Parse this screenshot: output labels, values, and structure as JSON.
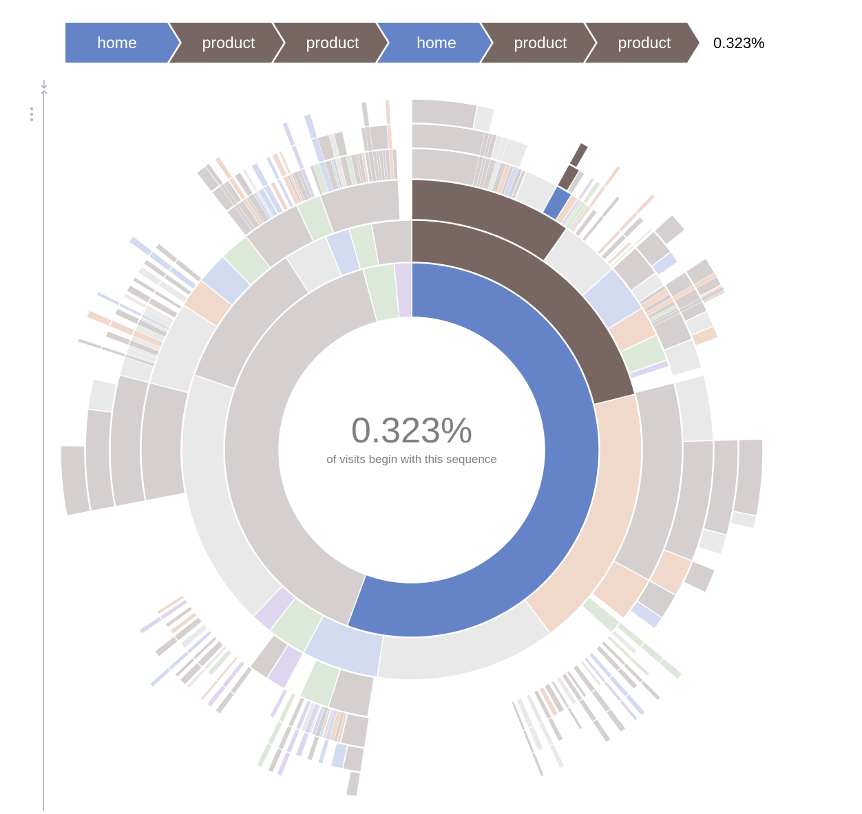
{
  "colors": {
    "home": "#6584c8",
    "product": "#776662",
    "search": "#d5cfcf",
    "account": "#f0d8cb",
    "other": "#e9e9e9",
    "end": "#d2dbf0",
    "green": "#dde9d8",
    "purple": "#ddd6ee"
  },
  "breadcrumb": {
    "steps": [
      {
        "label": "home",
        "color": "#6584c8"
      },
      {
        "label": "product",
        "color": "#776662"
      },
      {
        "label": "product",
        "color": "#776662"
      },
      {
        "label": "home",
        "color": "#6584c8"
      },
      {
        "label": "product",
        "color": "#776662"
      },
      {
        "label": "product",
        "color": "#776662"
      }
    ],
    "percentage": "0.323%"
  },
  "center": {
    "percentage": "0.323%",
    "caption": "of visits begin with this sequence"
  },
  "chart_data": {
    "type": "sunburst",
    "highlighted_sequence": [
      "home",
      "product",
      "product",
      "home",
      "product",
      "product"
    ],
    "highlighted_share": "0.323%",
    "rings": [
      [
        {
          "cat": "home",
          "a0": 0,
          "a1": 0.556
        },
        {
          "cat": "search",
          "a0": 0.556,
          "a1": 0.958
        },
        {
          "cat": "green",
          "a0": 0.958,
          "a1": 0.985
        },
        {
          "cat": "purple",
          "a0": 0.985,
          "a1": 1.0
        }
      ],
      [
        {
          "cat": "product",
          "a0": 0,
          "a1": 0.211
        },
        {
          "cat": "account",
          "a0": 0.211,
          "a1": 0.397
        },
        {
          "cat": "other",
          "a0": 0.397,
          "a1": 0.524
        },
        {
          "cat": "end",
          "a0": 0.524,
          "a1": 0.578
        },
        {
          "cat": "green",
          "a0": 0.578,
          "a1": 0.606
        },
        {
          "cat": "purple",
          "a0": 0.606,
          "a1": 0.621
        },
        {
          "cat": "other",
          "a0": 0.621,
          "a1": 0.803
        },
        {
          "cat": "search",
          "a0": 0.803,
          "a1": 0.908
        },
        {
          "cat": "other",
          "a0": 0.908,
          "a1": 0.939
        },
        {
          "cat": "end",
          "a0": 0.939,
          "a1": 0.956
        },
        {
          "cat": "green",
          "a0": 0.956,
          "a1": 0.972
        },
        {
          "cat": "search",
          "a0": 0.972,
          "a1": 1.0
        }
      ],
      [
        {
          "cat": "product",
          "a0": 0,
          "a1": 0.097
        },
        {
          "cat": "other",
          "a0": 0.097,
          "a1": 0.133
        },
        {
          "cat": "end",
          "a0": 0.133,
          "a1": 0.162
        },
        {
          "cat": "account",
          "a0": 0.162,
          "a1": 0.18
        },
        {
          "cat": "green",
          "a0": 0.18,
          "a1": 0.196
        },
        {
          "cat": "purple",
          "a0": 0.196,
          "a1": 0.2
        },
        {
          "cat": "search",
          "a0": 0.21,
          "a1": 0.33
        },
        {
          "cat": "account",
          "a0": 0.33,
          "a1": 0.357
        },
        {
          "cat": "green",
          "a0": 0.36,
          "a1": 0.368
        },
        {
          "cat": "search",
          "a0": 0.526,
          "a1": 0.55
        },
        {
          "cat": "green",
          "a0": 0.55,
          "a1": 0.568
        },
        {
          "cat": "purple",
          "a0": 0.578,
          "a1": 0.59
        },
        {
          "cat": "search",
          "a0": 0.59,
          "a1": 0.602
        },
        {
          "cat": "search",
          "a0": 0.72,
          "a1": 0.79
        },
        {
          "cat": "other",
          "a0": 0.79,
          "a1": 0.84
        },
        {
          "cat": "account",
          "a0": 0.84,
          "a1": 0.858
        },
        {
          "cat": "end",
          "a0": 0.858,
          "a1": 0.877
        },
        {
          "cat": "green",
          "a0": 0.877,
          "a1": 0.895
        },
        {
          "cat": "search",
          "a0": 0.895,
          "a1": 0.93
        },
        {
          "cat": "green",
          "a0": 0.93,
          "a1": 0.945
        },
        {
          "cat": "search",
          "a0": 0.945,
          "a1": 0.992
        }
      ],
      [
        {
          "cat": "search",
          "a0": 0,
          "a1": 0.062
        },
        {
          "cat": "other",
          "a0": 0.062,
          "a1": 0.08
        },
        {
          "cat": "home",
          "a0": 0.08,
          "a1": 0.089
        },
        {
          "cat": "account",
          "a0": 0.089,
          "a1": 0.093
        },
        {
          "cat": "green",
          "a0": 0.093,
          "a1": 0.1
        },
        {
          "cat": "search",
          "a0": 0.133,
          "a1": 0.15
        },
        {
          "cat": "other",
          "a0": 0.15,
          "a1": 0.158
        },
        {
          "cat": "search",
          "a0": 0.158,
          "a1": 0.19
        },
        {
          "cat": "other",
          "a0": 0.19,
          "a1": 0.206
        },
        {
          "cat": "other",
          "a0": 0.21,
          "a1": 0.245
        },
        {
          "cat": "search",
          "a0": 0.245,
          "a1": 0.31
        },
        {
          "cat": "account",
          "a0": 0.31,
          "a1": 0.33
        },
        {
          "cat": "search",
          "a0": 0.33,
          "a1": 0.344
        },
        {
          "cat": "end",
          "a0": 0.344,
          "a1": 0.351
        },
        {
          "cat": "search",
          "a0": 0.525,
          "a1": 0.538
        },
        {
          "cat": "account",
          "a0": 0.538,
          "a1": 0.548
        },
        {
          "cat": "end",
          "a0": 0.548,
          "a1": 0.554
        },
        {
          "cat": "other",
          "a0": 0.554,
          "a1": 0.56
        },
        {
          "cat": "search",
          "a0": 0.72,
          "a1": 0.79
        },
        {
          "cat": "other",
          "a0": 0.79,
          "a1": 0.83
        },
        {
          "cat": "search",
          "a0": 0.895,
          "a1": 0.91
        },
        {
          "cat": "end",
          "a0": 0.91,
          "a1": 0.918
        },
        {
          "cat": "search",
          "a0": 0.93,
          "a1": 0.942
        },
        {
          "cat": "green",
          "a0": 0.945,
          "a1": 0.952
        },
        {
          "cat": "search",
          "a0": 0.952,
          "a1": 0.975
        },
        {
          "cat": "search",
          "a0": 0.975,
          "a1": 0.992
        }
      ],
      [
        {
          "cat": "search",
          "a0": 0,
          "a1": 0.042
        },
        {
          "cat": "other",
          "a0": 0.042,
          "a1": 0.058
        },
        {
          "cat": "product",
          "a0": 0.08,
          "a1": 0.086
        },
        {
          "cat": "search",
          "a0": 0.086,
          "a1": 0.089
        },
        {
          "cat": "search",
          "a0": 0.133,
          "a1": 0.146
        },
        {
          "cat": "end",
          "a0": 0.146,
          "a1": 0.152
        },
        {
          "cat": "search",
          "a0": 0.158,
          "a1": 0.18
        },
        {
          "cat": "other",
          "a0": 0.18,
          "a1": 0.188
        },
        {
          "cat": "account",
          "a0": 0.188,
          "a1": 0.194
        },
        {
          "cat": "search",
          "a0": 0.245,
          "a1": 0.292
        },
        {
          "cat": "other",
          "a0": 0.292,
          "a1": 0.302
        },
        {
          "cat": "search",
          "a0": 0.31,
          "a1": 0.322
        },
        {
          "cat": "search",
          "a0": 0.525,
          "a1": 0.534
        },
        {
          "cat": "end",
          "a0": 0.534,
          "a1": 0.54
        },
        {
          "cat": "search",
          "a0": 0.72,
          "a1": 0.77
        },
        {
          "cat": "other",
          "a0": 0.77,
          "a1": 0.785
        },
        {
          "cat": "search",
          "a0": 0.895,
          "a1": 0.905
        },
        {
          "cat": "search",
          "a0": 0.952,
          "a1": 0.966
        },
        {
          "cat": "search",
          "a0": 0.975,
          "a1": 0.988
        }
      ],
      [
        {
          "cat": "search",
          "a0": 0,
          "a1": 0.03
        },
        {
          "cat": "other",
          "a0": 0.03,
          "a1": 0.038
        },
        {
          "cat": "product",
          "a0": 0.08,
          "a1": 0.084
        },
        {
          "cat": "search",
          "a0": 0.133,
          "a1": 0.142
        },
        {
          "cat": "search",
          "a0": 0.158,
          "a1": 0.172
        },
        {
          "cat": "account",
          "a0": 0.172,
          "a1": 0.176
        },
        {
          "cat": "search",
          "a0": 0.245,
          "a1": 0.28
        },
        {
          "cat": "other",
          "a0": 0.28,
          "a1": 0.286
        },
        {
          "cat": "search",
          "a0": 0.525,
          "a1": 0.53
        },
        {
          "cat": "search",
          "a0": 0.72,
          "a1": 0.752
        },
        {
          "cat": "search",
          "a0": 0.895,
          "a1": 0.9
        }
      ]
    ],
    "thin_slivers": {
      "ring": 3,
      "groups": [
        [
          0.036,
          0.06
        ],
        [
          0.093,
          0.11
        ],
        [
          0.12,
          0.132
        ],
        [
          0.16,
          0.176
        ],
        [
          0.36,
          0.44
        ],
        [
          0.54,
          0.58
        ],
        [
          0.6,
          0.66
        ],
        [
          0.8,
          0.86
        ],
        [
          0.9,
          0.99
        ]
      ]
    }
  }
}
